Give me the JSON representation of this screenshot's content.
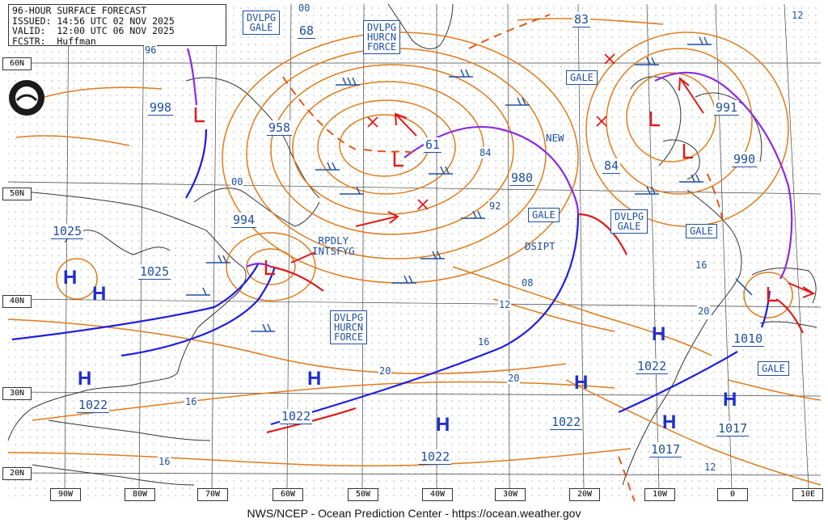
{
  "header": {
    "line1": "96-HOUR SURFACE FORECAST",
    "line2": "ISSUED: 14:56 UTC 02 NOV 2025",
    "line3": "VALID:  12:00 UTC 06 NOV 2025",
    "line4": "FCSTR:  Huffman"
  },
  "footer": "NWS/NCEP - Ocean Prediction Center - https://ocean.weather.gov",
  "warning_boxes": [
    {
      "text": "DVLPG\nGALE"
    },
    {
      "text": "DVLPG\nHURCN\nFORCE"
    },
    {
      "text": "GALE"
    },
    {
      "text": "GALE"
    },
    {
      "text": "DVLPG\nGALE"
    },
    {
      "text": "GALE"
    },
    {
      "text": "DVLPG\nHURCN\nFORCE"
    },
    {
      "text": "GALE"
    }
  ],
  "pressure_labels": [
    "998",
    "958",
    "61",
    "83",
    "991",
    "980",
    "84",
    "990",
    "994",
    "1025",
    "1025",
    "1022",
    "1022",
    "1022",
    "1022",
    "1022",
    "1010",
    "1017",
    "1017",
    "68"
  ],
  "isobar_labels": [
    "00",
    "96",
    "00",
    "84",
    "92",
    "08",
    "12",
    "16",
    "20",
    "20",
    "16",
    "12",
    "16",
    "20",
    "12",
    "16"
  ],
  "notes": [
    {
      "text": "RPDLY\nINTSFYG"
    },
    {
      "text": "NEW"
    },
    {
      "text": "DSIPT"
    }
  ],
  "high_symbol": "H",
  "low_symbol": "L",
  "latitudes": [
    "60N",
    "50N",
    "40N",
    "30N",
    "20N"
  ],
  "longitudes": [
    "90W",
    "80W",
    "70W",
    "60W",
    "50W",
    "40W",
    "30W",
    "20W",
    "10W",
    "0",
    "10E"
  ],
  "colors": {
    "isobar": "#e07b1a",
    "cold_front": "#1d1de0",
    "warm_front": "#e01b1b",
    "occluded_front": "#8a2be2",
    "label": "#1f4fa0",
    "coast": "#333333",
    "trough": "#e0591a"
  }
}
